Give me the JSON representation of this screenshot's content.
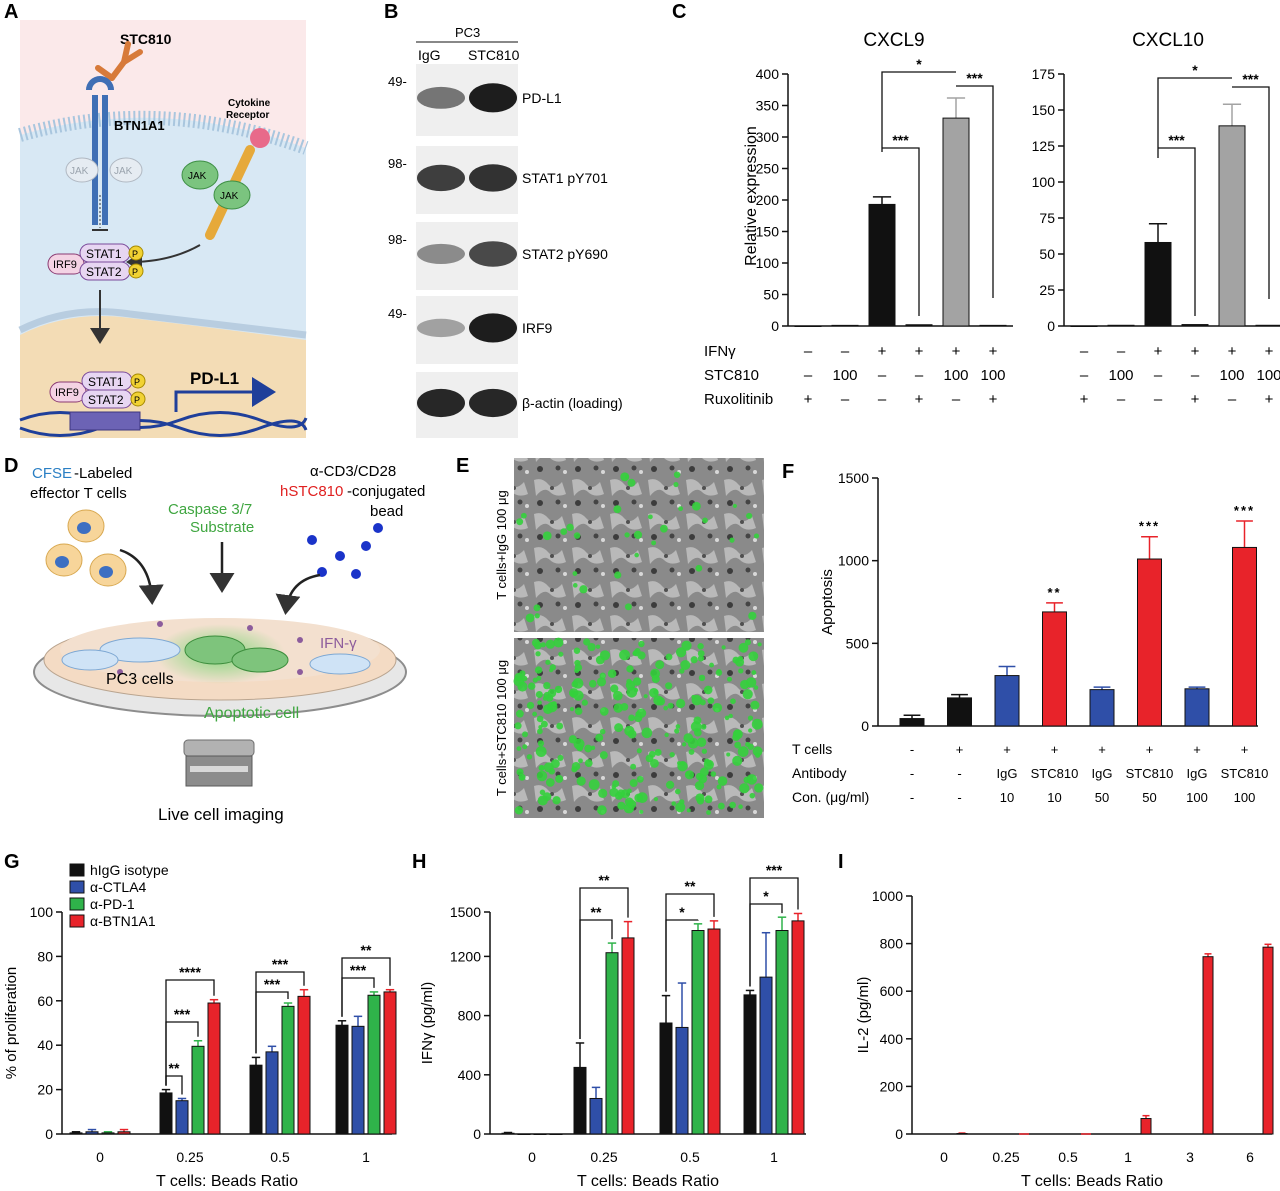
{
  "panels": {
    "A": {
      "label": "A",
      "antibody": "STC810",
      "receptor": "BTN1A1",
      "cytokine_receptor": [
        "Cytokine",
        "Receptor"
      ],
      "jak": "JAK",
      "stat1": "STAT1",
      "stat2": "STAT2",
      "irf9": "IRF9",
      "p": "P",
      "gene": "PD-L1"
    },
    "B": {
      "label": "B",
      "cell_line": "PC3",
      "lanes": [
        "IgG",
        "STC810"
      ],
      "blots": [
        {
          "name": "PD-L1",
          "marker": "49-"
        },
        {
          "name": "STAT1 pY701",
          "marker": "98-"
        },
        {
          "name": "STAT2 pY690",
          "marker": "98-"
        },
        {
          "name": "IRF9",
          "marker": "49-"
        },
        {
          "name": "β-actin (loading)",
          "marker": ""
        }
      ]
    },
    "C": {
      "label": "C",
      "ylabel": "Relative expression",
      "row_labels": [
        "IFNγ",
        "STC810",
        "Ruxolitinib"
      ],
      "conditions": [
        [
          "–",
          "–",
          "+"
        ],
        [
          "–",
          "100",
          "–"
        ],
        [
          "+",
          "–",
          "–"
        ],
        [
          "+",
          "–",
          "+"
        ],
        [
          "+",
          "100",
          "–"
        ],
        [
          "+",
          "100",
          "+"
        ]
      ],
      "sig": [
        "*",
        "***",
        "***"
      ]
    },
    "D": {
      "label": "D",
      "cfse": "CFSE",
      "cfse_rest": "-Labeled",
      "effector": "effector T cells",
      "caspase": [
        "Caspase 3/7",
        "Substrate"
      ],
      "anti_cd3": "α-CD3/CD28",
      "hstc": "hSTC810",
      "conj": "-conjugated",
      "bead": "bead",
      "ifng": "IFN-γ",
      "pc3": "PC3 cells",
      "apoptotic": "Apoptotic cell",
      "imaging": "Live cell imaging"
    },
    "E": {
      "label": "E",
      "top": "T cells+IgG 100 μg",
      "bottom": "T cells+STC810 100 μg"
    },
    "F": {
      "label": "F",
      "row_labels": [
        "T cells",
        "Antibody",
        "Con. (μg/ml)"
      ],
      "tcells": [
        "-",
        "+",
        "+",
        "+",
        "+",
        "+",
        "+",
        "+"
      ],
      "antibody": [
        "-",
        "-",
        "IgG",
        "STC810",
        "IgG",
        "STC810",
        "IgG",
        "STC810"
      ],
      "conc": [
        "-",
        "-",
        "10",
        "10",
        "50",
        "50",
        "100",
        "100"
      ],
      "sig": [
        "**",
        "***",
        "***"
      ]
    },
    "G": {
      "label": "G",
      "sig": [
        "**",
        "***",
        "****",
        "***",
        "***",
        "***",
        "**"
      ]
    },
    "H": {
      "label": "H",
      "sig": [
        "**",
        "**",
        "**",
        "*",
        "***",
        "*"
      ]
    },
    "I": {
      "label": "I"
    }
  },
  "colors": {
    "black": "#111111",
    "blue": "#2f4fa8",
    "green": "#2fb34a",
    "red": "#e8232a",
    "gray": "#a3a3a3"
  },
  "chart_data": [
    {
      "id": "C-CXCL9",
      "type": "bar",
      "title": "CXCL9",
      "ylabel": "Relative expression",
      "ylim": [
        0,
        400
      ],
      "yticks": [
        0,
        50,
        100,
        150,
        200,
        250,
        300,
        350,
        400
      ],
      "values": [
        0,
        1,
        193,
        2,
        330,
        1
      ],
      "errors": [
        0,
        0,
        12,
        0,
        32,
        0
      ],
      "colors": [
        "black",
        "black",
        "black",
        "black",
        "gray",
        "black"
      ]
    },
    {
      "id": "C-CXCL10",
      "type": "bar",
      "title": "CXCL10",
      "ylim": [
        0,
        175
      ],
      "yticks": [
        0,
        25,
        50,
        75,
        100,
        125,
        150,
        175
      ],
      "values": [
        0,
        0.5,
        58,
        1,
        139,
        0.5
      ],
      "errors": [
        0,
        0,
        13,
        0,
        15,
        0
      ],
      "colors": [
        "black",
        "black",
        "black",
        "black",
        "gray",
        "black"
      ]
    },
    {
      "id": "F",
      "type": "bar",
      "ylabel": "Apoptosis",
      "ylim": [
        0,
        1500
      ],
      "yticks": [
        0,
        500,
        1000,
        1500
      ],
      "values": [
        45,
        170,
        305,
        690,
        220,
        1010,
        225,
        1080
      ],
      "errors": [
        20,
        20,
        55,
        55,
        15,
        135,
        10,
        160
      ],
      "colors": [
        "black",
        "black",
        "blue",
        "red",
        "blue",
        "red",
        "blue",
        "red"
      ]
    },
    {
      "id": "G",
      "type": "bar",
      "ylabel": "% of proliferation",
      "xlabel": "T cells: Beads Ratio",
      "ylim": [
        0,
        100
      ],
      "yticks": [
        0,
        20,
        40,
        60,
        80,
        100
      ],
      "categories": [
        "0",
        "0.25",
        "0.5",
        "1"
      ],
      "series": [
        {
          "name": "hIgG isotype",
          "color": "black",
          "values": [
            0.5,
            18.5,
            31,
            49
          ],
          "errors": [
            0.5,
            1.5,
            3.5,
            2
          ]
        },
        {
          "name": "α-CTLA4",
          "color": "blue",
          "values": [
            1,
            15,
            37,
            48.5
          ],
          "errors": [
            1,
            1,
            2.5,
            4.5
          ]
        },
        {
          "name": "α-PD-1",
          "color": "green",
          "values": [
            0.5,
            39.5,
            57.5,
            62.5
          ],
          "errors": [
            0.5,
            2.5,
            1.5,
            1.5
          ]
        },
        {
          "name": "α-BTN1A1",
          "color": "red",
          "values": [
            1,
            59,
            62,
            64
          ],
          "errors": [
            1,
            1.5,
            3,
            1
          ]
        }
      ]
    },
    {
      "id": "H",
      "type": "bar",
      "ylabel": "IFNγ (pg/ml)",
      "xlabel": "T cells: Beads Ratio",
      "ylim": [
        0,
        1500
      ],
      "yticks": [
        0,
        400,
        800,
        1200,
        1500
      ],
      "categories": [
        "0",
        "0.25",
        "0.5",
        "1"
      ],
      "series": [
        {
          "name": "hIgG isotype",
          "color": "black",
          "values": [
            5,
            450,
            750,
            940
          ],
          "errors": [
            5,
            165,
            185,
            30
          ]
        },
        {
          "name": "α-CTLA4",
          "color": "blue",
          "values": [
            0,
            240,
            720,
            1060
          ],
          "errors": [
            0,
            75,
            300,
            300
          ]
        },
        {
          "name": "α-PD-1",
          "color": "green",
          "values": [
            0,
            1225,
            1375,
            1375
          ],
          "errors": [
            0,
            65,
            45,
            90
          ]
        },
        {
          "name": "α-BTN1A1",
          "color": "red",
          "values": [
            0,
            1325,
            1385,
            1440
          ],
          "errors": [
            0,
            110,
            55,
            50
          ]
        }
      ]
    },
    {
      "id": "I",
      "type": "bar",
      "ylabel": "IL-2 (pg/ml)",
      "xlabel": "T cells: Beads Ratio",
      "ylim": [
        0,
        1000
      ],
      "yticks": [
        0,
        200,
        400,
        600,
        800,
        1000
      ],
      "categories": [
        "0",
        "0.25",
        "0.5",
        "1",
        "3",
        "6"
      ],
      "values": [
        2,
        0,
        0,
        65,
        745,
        785
      ],
      "errors": [
        2,
        0,
        0,
        12,
        12,
        12
      ],
      "colors": [
        "red",
        "red",
        "red",
        "red",
        "red",
        "red"
      ]
    }
  ]
}
